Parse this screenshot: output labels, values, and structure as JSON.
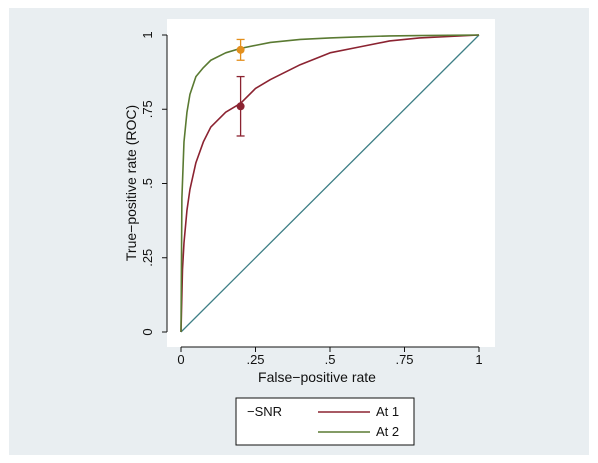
{
  "chart_data": {
    "type": "line",
    "title": "",
    "xlabel": "False−positive rate",
    "ylabel": "True−positive rate (ROC)",
    "xlim": [
      0,
      1
    ],
    "ylim": [
      0,
      1
    ],
    "x_ticks": [
      {
        "value": 0,
        "label": "0"
      },
      {
        "value": 0.25,
        "label": ".25"
      },
      {
        "value": 0.5,
        "label": ".5"
      },
      {
        "value": 0.75,
        "label": ".75"
      },
      {
        "value": 1,
        "label": "1"
      }
    ],
    "y_ticks": [
      {
        "value": 0,
        "label": "0"
      },
      {
        "value": 0.25,
        "label": ".25"
      },
      {
        "value": 0.5,
        "label": ".5"
      },
      {
        "value": 0.75,
        "label": ".75"
      },
      {
        "value": 1,
        "label": "1"
      }
    ],
    "grid": false,
    "legend_title": "−SNR",
    "legend_position": "bottom",
    "reference_line": {
      "x": [
        0,
        1
      ],
      "y": [
        0,
        1
      ],
      "color": "#3e7f86"
    },
    "series": [
      {
        "name": "At 1",
        "color": "#8b2331",
        "x": [
          0,
          0.005,
          0.01,
          0.02,
          0.03,
          0.05,
          0.075,
          0.1,
          0.15,
          0.2,
          0.25,
          0.3,
          0.4,
          0.5,
          0.6,
          0.7,
          0.8,
          0.9,
          1
        ],
        "y": [
          0,
          0.21,
          0.3,
          0.41,
          0.48,
          0.57,
          0.64,
          0.69,
          0.74,
          0.77,
          0.82,
          0.85,
          0.9,
          0.94,
          0.96,
          0.98,
          0.99,
          0.995,
          1
        ],
        "point": {
          "x": 0.2,
          "y": 0.76,
          "ci_low": 0.66,
          "ci_high": 0.86
        }
      },
      {
        "name": "At 2",
        "color": "#5a7a32",
        "x": [
          0,
          0.003,
          0.01,
          0.02,
          0.03,
          0.05,
          0.075,
          0.1,
          0.15,
          0.2,
          0.25,
          0.3,
          0.4,
          0.5,
          0.6,
          0.7,
          0.8,
          0.9,
          1
        ],
        "y": [
          0,
          0.45,
          0.64,
          0.74,
          0.8,
          0.86,
          0.89,
          0.915,
          0.94,
          0.955,
          0.965,
          0.975,
          0.985,
          0.99,
          0.994,
          0.997,
          0.998,
          0.999,
          1
        ],
        "point": {
          "x": 0.2,
          "y": 0.95,
          "ci_low": 0.915,
          "ci_high": 0.985,
          "color": "#e38f1c"
        }
      }
    ]
  },
  "colors": {
    "page_background": "#ffffff",
    "frame_background": "#e9eef1",
    "plot_background": "#ffffff",
    "axis": "#111111"
  }
}
